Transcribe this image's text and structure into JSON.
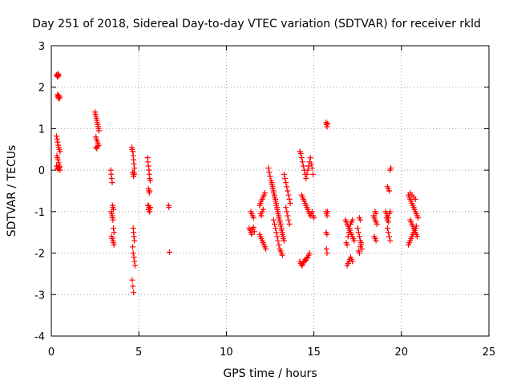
{
  "chart_data": {
    "type": "scatter",
    "title": "Day 251 of 2018, Sidereal Day-to-day VTEC variation (SDTVAR) for receiver rkld",
    "xlabel": "GPS time / hours",
    "ylabel": "SDTVAR / TECUs",
    "xlim": [
      0,
      25
    ],
    "ylim": [
      -4,
      3
    ],
    "x_ticks": [
      "0",
      "5",
      "10",
      "15",
      "20",
      "25"
    ],
    "y_ticks": [
      "-4",
      "-3",
      "-2",
      "-1",
      "0",
      "1",
      "2",
      "3"
    ],
    "grid": true,
    "marker": "plus",
    "color": "#ff0000",
    "series": [
      {
        "x": [
          0.3,
          0.33,
          0.36,
          0.38,
          0.4,
          0.42,
          0.35,
          0.38,
          0.4,
          0.43,
          0.45,
          0.48,
          0.3,
          0.33,
          0.36,
          0.4,
          0.43,
          0.46,
          0.5,
          0.32,
          0.35,
          0.38,
          0.42,
          0.45,
          0.48,
          0.3,
          0.34,
          0.38,
          0.42,
          0.46,
          0.5,
          2.5,
          2.52,
          2.55,
          2.58,
          2.6,
          2.62,
          2.65,
          2.68,
          2.7,
          2.72,
          2.55,
          2.58,
          2.62,
          2.66,
          2.7,
          2.55,
          2.6,
          2.65,
          3.4,
          3.42,
          3.45,
          3.48,
          3.5,
          3.52,
          3.55,
          3.42,
          3.45,
          3.48,
          3.5,
          3.52,
          3.55,
          3.58,
          3.45,
          3.48,
          3.52,
          3.55,
          3.58,
          4.6,
          4.62,
          4.65,
          4.68,
          4.7,
          4.72,
          4.75,
          4.65,
          4.68,
          4.7,
          4.72,
          4.75,
          4.68,
          4.7,
          4.72,
          4.75,
          4.65,
          4.68,
          4.72,
          4.75,
          4.78,
          4.62,
          4.66,
          4.7,
          5.5,
          5.52,
          5.55,
          5.58,
          5.6,
          5.62,
          5.65,
          5.55,
          5.58,
          5.6,
          5.62,
          5.55,
          5.58,
          5.6,
          5.62,
          5.65,
          5.52,
          5.55,
          5.6,
          5.65,
          6.7,
          6.72,
          6.75,
          11.3,
          11.35,
          11.4,
          11.45,
          11.5,
          11.55,
          11.6,
          11.4,
          11.45,
          11.5,
          11.55,
          11.9,
          11.95,
          12.0,
          12.05,
          12.1,
          12.15,
          12.2,
          11.95,
          12.0,
          12.05,
          12.1,
          11.9,
          11.95,
          12.0,
          12.05,
          12.1,
          12.15,
          12.2,
          12.25,
          12.4,
          12.45,
          12.5,
          12.55,
          12.6,
          12.65,
          12.7,
          12.75,
          12.8,
          12.85,
          12.9,
          12.95,
          13.0,
          13.05,
          13.1,
          13.15,
          13.2,
          13.25,
          12.6,
          12.65,
          12.7,
          12.75,
          12.8,
          12.85,
          12.9,
          12.95,
          13.0,
          13.05,
          13.1,
          13.15,
          13.2,
          13.25,
          13.3,
          12.7,
          12.75,
          12.8,
          12.85,
          12.9,
          12.95,
          13.0,
          13.05,
          13.1,
          13.15,
          13.2,
          13.3,
          13.35,
          13.4,
          13.45,
          13.5,
          13.55,
          13.6,
          13.65,
          13.4,
          13.45,
          13.5,
          13.55,
          13.6,
          14.2,
          14.25,
          14.3,
          14.35,
          14.4,
          14.45,
          14.5,
          14.55,
          14.6,
          14.65,
          14.7,
          14.75,
          14.8,
          14.85,
          14.9,
          14.95,
          14.3,
          14.35,
          14.4,
          14.45,
          14.5,
          14.55,
          14.6,
          14.65,
          14.7,
          14.75,
          14.8,
          14.85,
          14.9,
          14.95,
          15.0,
          14.2,
          14.25,
          14.3,
          14.35,
          14.4,
          14.45,
          14.5,
          14.55,
          14.6,
          14.65,
          14.7,
          14.75,
          15.7,
          15.72,
          15.75,
          15.78,
          15.7,
          15.72,
          15.75,
          15.78,
          15.7,
          15.75,
          15.72,
          15.75,
          16.8,
          16.85,
          16.9,
          16.95,
          17.0,
          17.05,
          17.1,
          17.15,
          17.2,
          17.25,
          17.3,
          16.85,
          16.9,
          16.95,
          17.0,
          17.05,
          17.1,
          17.15,
          17.2,
          16.9,
          16.95,
          17.0,
          17.05,
          17.1,
          17.15,
          17.2,
          17.5,
          17.55,
          17.6,
          17.65,
          17.7,
          17.75,
          17.55,
          17.6,
          17.65,
          17.7,
          17.6,
          17.65,
          18.4,
          18.45,
          18.5,
          18.55,
          18.6,
          18.45,
          18.5,
          18.55,
          18.5,
          18.55,
          19.1,
          19.15,
          19.2,
          19.25,
          19.3,
          19.35,
          19.2,
          19.25,
          19.3,
          19.35,
          19.4,
          19.2,
          19.25,
          19.3,
          19.35,
          19.15,
          19.2,
          19.25,
          20.4,
          20.45,
          20.5,
          20.55,
          20.6,
          20.65,
          20.7,
          20.75,
          20.8,
          20.85,
          20.9,
          20.95,
          20.5,
          20.55,
          20.6,
          20.65,
          20.7,
          20.75,
          20.8,
          20.85,
          20.9,
          20.4,
          20.45,
          20.5,
          20.55,
          20.6,
          20.65,
          20.7,
          20.75,
          20.8,
          20.85,
          20.5,
          20.6,
          20.7,
          20.8
        ],
        "y": [
          2.3,
          2.28,
          2.25,
          2.32,
          2.27,
          2.3,
          1.82,
          1.78,
          1.75,
          1.8,
          1.72,
          1.76,
          0.82,
          0.75,
          0.68,
          0.6,
          0.55,
          0.5,
          0.45,
          0.35,
          0.3,
          0.25,
          0.18,
          0.12,
          0.08,
          0.1,
          0.05,
          0.02,
          0.08,
          0.05,
          0.0,
          1.4,
          1.35,
          1.3,
          1.25,
          1.2,
          1.15,
          1.1,
          1.05,
          1.0,
          0.95,
          0.8,
          0.75,
          0.7,
          0.65,
          0.6,
          0.55,
          0.52,
          0.58,
          0.0,
          -0.1,
          -0.2,
          -0.3,
          -0.85,
          -0.9,
          -0.95,
          -1.0,
          -1.05,
          -1.1,
          -1.15,
          -1.2,
          -1.4,
          -1.5,
          -1.6,
          -1.65,
          -1.7,
          -1.75,
          -1.8,
          0.55,
          0.5,
          0.45,
          0.35,
          0.25,
          0.15,
          0.05,
          -0.05,
          -0.1,
          -0.15,
          -0.05,
          -0.1,
          -1.4,
          -1.5,
          -1.6,
          -1.7,
          -1.85,
          -2.0,
          -2.1,
          -2.2,
          -2.3,
          -2.65,
          -2.8,
          -2.95,
          0.3,
          0.2,
          0.1,
          0.0,
          -0.1,
          -0.2,
          -0.25,
          -0.45,
          -0.5,
          -0.55,
          -0.5,
          -0.85,
          -0.9,
          -0.95,
          -1.0,
          -0.9,
          -0.85,
          -0.95,
          -1.0,
          -0.9,
          -0.85,
          -0.9,
          -1.98,
          -1.4,
          -1.45,
          -1.5,
          -1.55,
          -1.42,
          -1.38,
          -1.48,
          -1.0,
          -1.05,
          -1.1,
          -1.15,
          -0.85,
          -0.8,
          -0.75,
          -0.7,
          -0.65,
          -0.6,
          -0.55,
          -1.05,
          -1.1,
          -1.0,
          -0.95,
          -1.55,
          -1.6,
          -1.65,
          -1.7,
          -1.75,
          -1.8,
          -1.85,
          -1.9,
          0.05,
          -0.05,
          -0.15,
          -0.25,
          -0.35,
          -0.45,
          -0.55,
          -0.65,
          -0.75,
          -0.85,
          -0.95,
          -1.05,
          -1.15,
          -1.25,
          -1.35,
          -1.45,
          -1.55,
          -1.65,
          -0.3,
          -0.4,
          -0.5,
          -0.6,
          -0.7,
          -0.8,
          -0.9,
          -1.0,
          -1.1,
          -1.2,
          -1.3,
          -1.4,
          -1.5,
          -1.6,
          -1.7,
          -1.2,
          -1.3,
          -1.4,
          -1.5,
          -1.6,
          -1.7,
          -1.8,
          -1.9,
          -1.95,
          -2.0,
          -2.05,
          -0.1,
          -0.2,
          -0.3,
          -0.4,
          -0.5,
          -0.6,
          -0.7,
          -0.8,
          -0.9,
          -1.0,
          -1.1,
          -1.2,
          -1.3,
          0.45,
          0.4,
          0.3,
          0.2,
          0.1,
          0.0,
          -0.1,
          -0.2,
          -0.1,
          0.0,
          0.1,
          0.2,
          0.3,
          0.15,
          0.05,
          -0.1,
          -0.6,
          -0.65,
          -0.7,
          -0.75,
          -0.8,
          -0.85,
          -0.9,
          -0.95,
          -1.0,
          -1.05,
          -1.1,
          -1.05,
          -1.0,
          -1.1,
          -1.15,
          -2.2,
          -2.25,
          -2.3,
          -2.28,
          -2.22,
          -2.2,
          -2.15,
          -2.18,
          -2.12,
          -2.1,
          -2.05,
          -2.0,
          1.15,
          1.1,
          1.05,
          1.12,
          -1.0,
          -1.05,
          -1.1,
          -1.0,
          -1.5,
          -1.55,
          -1.9,
          -2.0,
          -1.2,
          -1.25,
          -1.3,
          -1.35,
          -1.4,
          -1.45,
          -1.5,
          -1.55,
          -1.6,
          -1.65,
          -1.7,
          -1.75,
          -1.8,
          -1.6,
          -1.5,
          -1.4,
          -1.3,
          -1.25,
          -1.2,
          -2.3,
          -2.25,
          -2.2,
          -2.15,
          -2.1,
          -2.15,
          -2.2,
          -1.4,
          -1.5,
          -1.6,
          -1.7,
          -1.8,
          -1.9,
          -1.95,
          -2.0,
          -1.85,
          -1.75,
          -1.15,
          -1.2,
          -1.1,
          -1.15,
          -1.2,
          -1.25,
          -1.3,
          -1.6,
          -1.65,
          -1.7,
          -1.0,
          -1.05,
          -1.0,
          -1.05,
          -1.1,
          -1.15,
          -1.05,
          -1.0,
          -0.4,
          -0.45,
          -0.5,
          0.0,
          0.05,
          -1.4,
          -1.5,
          -1.6,
          -1.7,
          -1.15,
          -1.2,
          -1.25,
          -0.6,
          -0.65,
          -0.7,
          -0.75,
          -0.8,
          -0.85,
          -0.9,
          -0.95,
          -1.0,
          -1.05,
          -1.1,
          -1.15,
          -1.2,
          -1.25,
          -1.3,
          -1.35,
          -1.4,
          -1.45,
          -1.5,
          -1.55,
          -1.6,
          -1.8,
          -1.75,
          -1.7,
          -1.65,
          -1.6,
          -1.55,
          -1.5,
          -1.45,
          -1.4,
          -1.35,
          -0.55,
          -0.6,
          -0.65,
          -0.7
        ]
      }
    ]
  }
}
